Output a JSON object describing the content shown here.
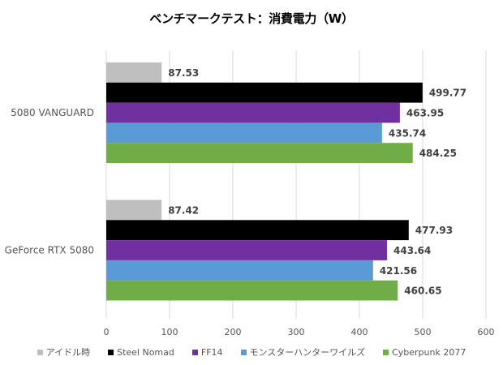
{
  "chart_data": {
    "type": "bar",
    "orientation": "horizontal",
    "title": "ベンチマークテスト：消費電力（W）",
    "xlabel": "",
    "ylabel": "",
    "categories": [
      "5080 VANGUARD",
      "GeForce RTX 5080"
    ],
    "series": [
      {
        "name": "アイドル時",
        "color": "#bfbfbf",
        "values": [
          87.53,
          87.42
        ]
      },
      {
        "name": "Steel Nomad",
        "color": "#000000",
        "values": [
          499.77,
          477.93
        ]
      },
      {
        "name": "FF14",
        "color": "#7030a0",
        "values": [
          463.95,
          443.64
        ]
      },
      {
        "name": "モンスターハンターワイルズ",
        "color": "#5b9bd5",
        "values": [
          435.74,
          421.56
        ]
      },
      {
        "name": "Cyberpunk 2077",
        "color": "#70ad47",
        "values": [
          484.25,
          460.65
        ]
      }
    ],
    "xlim": [
      0,
      600
    ],
    "xticks": [
      "0",
      "100",
      "200",
      "300",
      "400",
      "500",
      "600"
    ],
    "grid": true,
    "legend_position": "bottom"
  }
}
